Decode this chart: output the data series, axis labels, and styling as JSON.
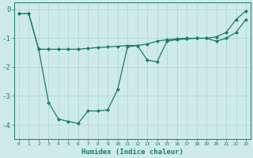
{
  "xlabel": "Humidex (Indice chaleur)",
  "background_color": "#ceeaea",
  "grid_color": "#add4d4",
  "line_color": "#1a7a6e",
  "upper_x": [
    0,
    1,
    2,
    3,
    4,
    5,
    6,
    7,
    8,
    9,
    10,
    11,
    12,
    13,
    14,
    15,
    16,
    17,
    18,
    19,
    20,
    21,
    22,
    23
  ],
  "upper_y": [
    -0.15,
    -0.15,
    -1.38,
    -1.38,
    -1.38,
    -1.38,
    -1.38,
    -1.35,
    -1.32,
    -1.3,
    -1.28,
    -1.25,
    -1.25,
    -1.2,
    -1.1,
    -1.05,
    -1.02,
    -1.0,
    -1.0,
    -1.0,
    -0.95,
    -0.8,
    -0.35,
    -0.05
  ],
  "lower_x": [
    0,
    1,
    2,
    3,
    4,
    5,
    6,
    7,
    8,
    9,
    10,
    11,
    12,
    13,
    14,
    15,
    16,
    17,
    18,
    19,
    20,
    21,
    22,
    23
  ],
  "lower_y": [
    -0.15,
    -0.15,
    -1.38,
    -3.22,
    -3.8,
    -3.88,
    -3.95,
    -3.52,
    -3.52,
    -3.48,
    -2.78,
    -1.3,
    -1.25,
    -1.75,
    -1.82,
    -1.1,
    -1.05,
    -1.02,
    -1.0,
    -1.0,
    -1.1,
    -1.0,
    -0.8,
    -0.35
  ],
  "ylim": [
    -4.5,
    0.25
  ],
  "xlim": [
    -0.5,
    23.5
  ],
  "yticks": [
    0,
    -1,
    -2,
    -3,
    -4
  ],
  "xticks": [
    0,
    1,
    2,
    3,
    4,
    5,
    6,
    7,
    8,
    9,
    10,
    11,
    12,
    13,
    14,
    15,
    16,
    17,
    18,
    19,
    20,
    21,
    22,
    23
  ],
  "marker": "D",
  "markersize": 2.0,
  "linewidth": 0.9
}
